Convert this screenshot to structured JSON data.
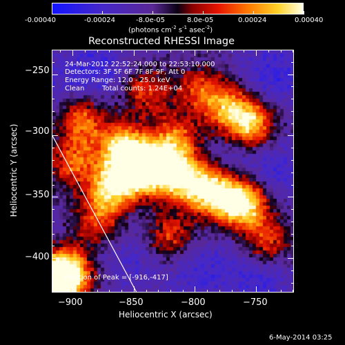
{
  "colorbar": {
    "tick_labels": [
      "-0.00040",
      "-0.00024",
      "-8.0e-05",
      "8.0e-05",
      "0.00024",
      "0.00040"
    ],
    "units_prefix": "(photons cm",
    "units_exp1": "-2",
    "units_mid1": " s",
    "units_exp2": "-1",
    "units_mid2": " asec",
    "units_exp3": "-2",
    "units_suffix": ")",
    "range": [
      -0.0004,
      0.0004
    ]
  },
  "title": "Reconstructed RHESSI Image",
  "info": {
    "time": "24-Mar-2012 22:52:24.000 to 22:53:10.000",
    "detectors": "Detectors: 3F 5F 6F 7F 8F 9F, Att 0",
    "energy": "Energy Range: 12.0 - 25.0 keV",
    "method": "Clean",
    "counts": "Total counts: 1.24E+04"
  },
  "peak_label": "Position of Peak = [-916,-417]",
  "footer_date": "6-May-2014 03:25",
  "chart_data": {
    "type": "heatmap",
    "title": "Reconstructed RHESSI Image",
    "xlabel": "Heliocentric X (arcsec)",
    "ylabel": "Heliocentric Y (arcsec)",
    "xlim": [
      -917,
      -719
    ],
    "ylim": [
      -428,
      -230
    ],
    "x_ticks": [
      -900,
      -850,
      -800,
      -750
    ],
    "x_tick_labels": [
      "−900",
      "−850",
      "−800",
      "−750"
    ],
    "y_ticks": [
      -250,
      -300,
      -350,
      -400
    ],
    "y_tick_labels": [
      "−250",
      "−300",
      "−350",
      "−400"
    ],
    "peak": [
      -916,
      -417
    ],
    "value_range": [
      -0.0004,
      0.0004
    ],
    "hot_spots": [
      {
        "x": -893,
        "y": -287,
        "v": 0.00022
      },
      {
        "x": -861,
        "y": -309,
        "v": 0.00026
      },
      {
        "x": -842,
        "y": -322,
        "v": 0.00032
      },
      {
        "x": -820,
        "y": -331,
        "v": 0.00036
      },
      {
        "x": -795,
        "y": -342,
        "v": 0.00034
      },
      {
        "x": -772,
        "y": -352,
        "v": 0.00031
      },
      {
        "x": -756,
        "y": -357,
        "v": 0.00024
      },
      {
        "x": -755,
        "y": -290,
        "v": 0.00036
      },
      {
        "x": -775,
        "y": -275,
        "v": 0.0002
      },
      {
        "x": -870,
        "y": -345,
        "v": 0.00026
      },
      {
        "x": -852,
        "y": -330,
        "v": 0.00028
      },
      {
        "x": -815,
        "y": -303,
        "v": 0.0002
      },
      {
        "x": -820,
        "y": -383,
        "v": 0.00016
      },
      {
        "x": -740,
        "y": -388,
        "v": 0.00017
      },
      {
        "x": -905,
        "y": -412,
        "v": 0.00036
      },
      {
        "x": -915,
        "y": -421,
        "v": 0.0004
      },
      {
        "x": -900,
        "y": -322,
        "v": 0.00018
      },
      {
        "x": -840,
        "y": -264,
        "v": 0.00014
      },
      {
        "x": -798,
        "y": -261,
        "v": 0.00012
      },
      {
        "x": -880,
        "y": -370,
        "v": 0.00012
      }
    ],
    "cold_spots": [
      {
        "x": -880,
        "y": -245,
        "v": -0.00014
      },
      {
        "x": -735,
        "y": -250,
        "v": -0.00016
      },
      {
        "x": -730,
        "y": -330,
        "v": -0.00012
      },
      {
        "x": -850,
        "y": -400,
        "v": -0.0001
      },
      {
        "x": -795,
        "y": -410,
        "v": -0.00014
      },
      {
        "x": -745,
        "y": -415,
        "v": -0.00016
      },
      {
        "x": -910,
        "y": -260,
        "v": -8e-05
      },
      {
        "x": -765,
        "y": -318,
        "v": -8e-05
      }
    ],
    "limb_line": [
      [
        -917,
        -300
      ],
      [
        -848,
        -428
      ]
    ]
  },
  "colors": {
    "background": "#000000",
    "foreground": "#ffffff"
  }
}
